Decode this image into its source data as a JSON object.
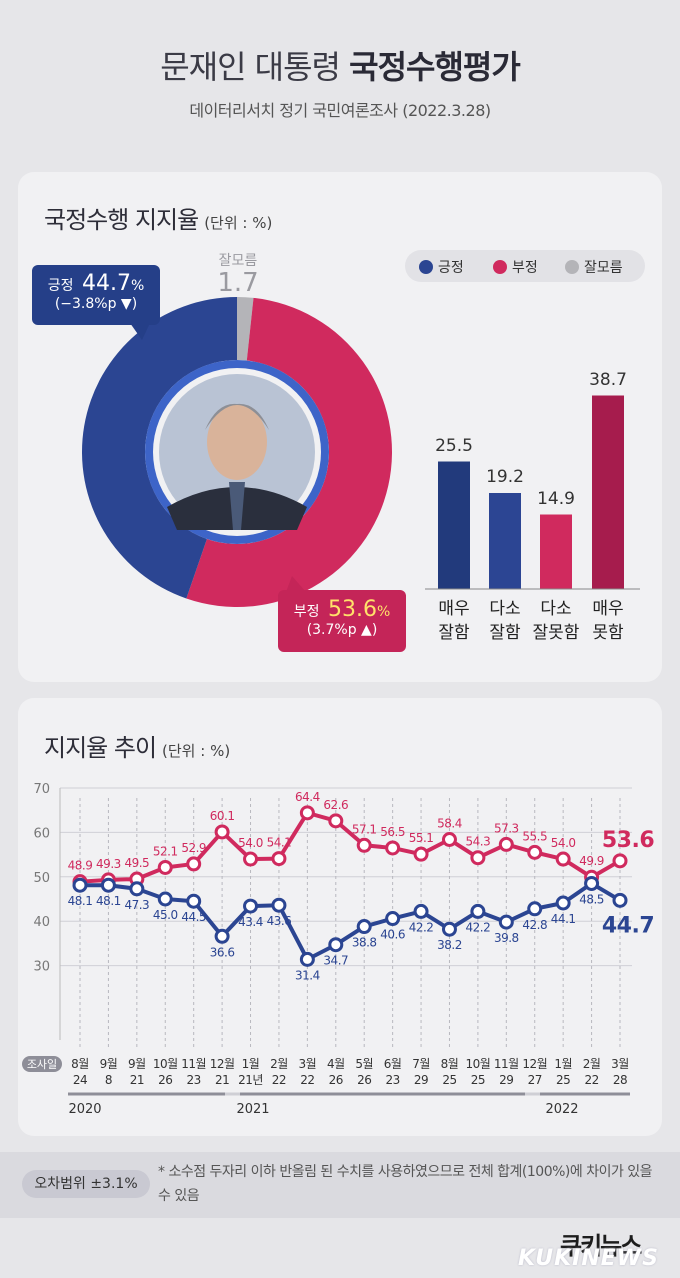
{
  "header": {
    "title_light": "문재인 대통령",
    "title_bold": "국정수행평가",
    "subtitle": "데이터리서치 정기 국민여론조사 (2022.3.28)"
  },
  "approval": {
    "title": "국정수행 지지율",
    "unit": "(단위 : %)",
    "legend": [
      {
        "label": "긍정",
        "color": "#2b4592"
      },
      {
        "label": "부정",
        "color": "#d02a5e"
      },
      {
        "label": "잘모름",
        "color": "#b4b4b8"
      }
    ],
    "positive": {
      "label": "긍정",
      "value": "44.7",
      "pct": "%",
      "change": "(−3.8%p ▼)"
    },
    "negative": {
      "label": "부정",
      "value": "53.6",
      "pct": "%",
      "change": "(3.7%p ▲)"
    },
    "unknown": {
      "label": "잘모름",
      "value": "1.7"
    }
  },
  "breakdown_chart": {
    "type": "bar",
    "categories": [
      [
        "매우",
        "잘함"
      ],
      [
        "다소",
        "잘함"
      ],
      [
        "다소",
        "잘못함"
      ],
      [
        "매우",
        "못함"
      ]
    ],
    "values": [
      25.5,
      19.2,
      14.9,
      38.7
    ],
    "value_labels": [
      "25.5",
      "19.2",
      "14.9",
      "38.7"
    ],
    "colors": [
      "#223a7c",
      "#2c4593",
      "#d02a5e",
      "#a61c4d"
    ],
    "ylim": [
      0,
      40
    ]
  },
  "trend": {
    "title": "지지율 추이",
    "unit": "(단위 : %)",
    "row_label": "조사일",
    "years": [
      "2020",
      "2021",
      "2022"
    ]
  },
  "chart_data": {
    "type": "line",
    "ylim": [
      20,
      70
    ],
    "yticks": [
      "70",
      "60",
      "50",
      "40",
      "30"
    ],
    "x": [
      [
        "8월",
        "24"
      ],
      [
        "9월",
        "8"
      ],
      [
        "9월",
        "21"
      ],
      [
        "10월",
        "26"
      ],
      [
        "11월",
        "23"
      ],
      [
        "12월",
        "21"
      ],
      [
        "1월",
        "21년"
      ],
      [
        "2월",
        "22"
      ],
      [
        "3월",
        "22"
      ],
      [
        "4월",
        "26"
      ],
      [
        "5월",
        "26"
      ],
      [
        "6월",
        "23"
      ],
      [
        "7월",
        "29"
      ],
      [
        "8월",
        "25"
      ],
      [
        "10월",
        "25"
      ],
      [
        "11월",
        "29"
      ],
      [
        "12월",
        "27"
      ],
      [
        "1월",
        "25"
      ],
      [
        "2월",
        "22"
      ],
      [
        "3월",
        "28"
      ]
    ],
    "series": [
      {
        "name": "부정",
        "color": "#d02a5e",
        "values": [
          48.9,
          49.3,
          49.5,
          52.1,
          52.9,
          60.1,
          54.0,
          54.1,
          64.4,
          62.6,
          57.1,
          56.5,
          55.1,
          58.4,
          54.3,
          57.3,
          55.5,
          54.0,
          49.9,
          53.6
        ],
        "labels": [
          "48.9",
          "49.3",
          "49.5",
          "52.1",
          "52.9",
          "60.1",
          "54.0",
          "54.1",
          "64.4",
          "62.6",
          "57.1",
          "56.5",
          "55.1",
          "58.4",
          "54.3",
          "57.3",
          "55.5",
          "54.0",
          "49.9",
          "53.6"
        ]
      },
      {
        "name": "긍정",
        "color": "#2b4592",
        "values": [
          48.1,
          48.1,
          47.3,
          45.0,
          44.5,
          36.6,
          43.4,
          43.6,
          31.4,
          34.7,
          38.8,
          40.6,
          42.2,
          38.2,
          42.2,
          39.8,
          42.8,
          44.1,
          48.5,
          44.7
        ],
        "labels": [
          "48.1",
          "48.1",
          "47.3",
          "45.0",
          "44.5",
          "36.6",
          "43.4",
          "43.6",
          "31.4",
          "34.7",
          "38.8",
          "40.6",
          "42.2",
          "38.2",
          "42.2",
          "39.8",
          "42.8",
          "44.1",
          "48.5",
          "44.7"
        ]
      }
    ]
  },
  "footer": {
    "error_margin": "오차범위 ±3.1%",
    "note": "* 소수점 두자리 이하 반올림 된 수치를 사용하였으므로 전체 합계(100%)에 차이가 있을 수 있음",
    "brand": "쿠키뉴스",
    "brand_en": "KUKINEWS"
  }
}
